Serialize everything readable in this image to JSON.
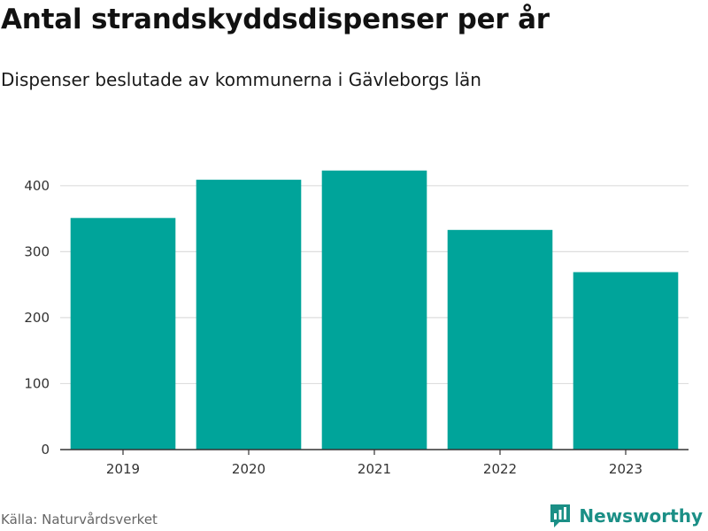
{
  "title": "Antal strandskyddsdispenser per år",
  "subtitle": "Dispenser beslutade av kommunerna i Gävleborgs län",
  "source": "Källa: Naturvårdsverket",
  "brand": {
    "name": "Newsworthy",
    "logo_icon": "bar-chart-speech-bubble-icon"
  },
  "colors": {
    "bar": "#00a49a",
    "grid": "#dddddd",
    "axis": "#333333",
    "brand": "#1b8f86"
  },
  "chart_data": {
    "type": "bar",
    "title": "Antal strandskyddsdispenser per år",
    "subtitle": "Dispenser beslutade av kommunerna i Gävleborgs län",
    "xlabel": "",
    "ylabel": "",
    "categories": [
      "2019",
      "2020",
      "2021",
      "2022",
      "2023"
    ],
    "values": [
      351,
      409,
      423,
      333,
      269
    ],
    "ylim": [
      0,
      440
    ],
    "yticks": [
      0,
      100,
      200,
      300,
      400
    ],
    "grid": true,
    "legend": "none"
  }
}
